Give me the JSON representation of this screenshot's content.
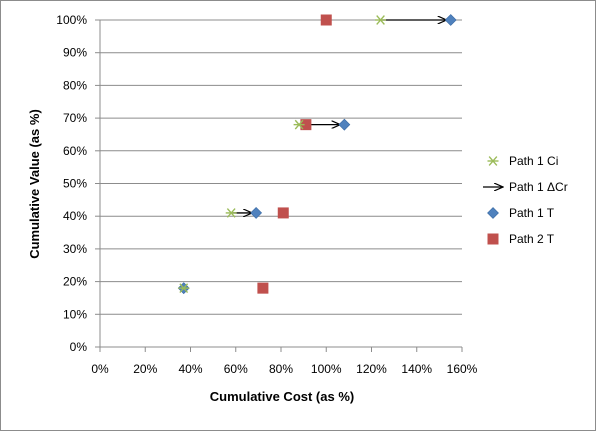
{
  "chart_data": {
    "type": "scatter",
    "xlabel": "Cumulative Cost (as %)",
    "ylabel": "Cumulative Value (as %)",
    "xlim": [
      0,
      160
    ],
    "ylim": [
      0,
      100
    ],
    "x_ticks": [
      "0%",
      "20%",
      "40%",
      "60%",
      "80%",
      "100%",
      "120%",
      "140%",
      "160%"
    ],
    "y_ticks": [
      "0%",
      "10%",
      "20%",
      "30%",
      "40%",
      "50%",
      "60%",
      "70%",
      "80%",
      "90%",
      "100%"
    ],
    "grid": "horizontal",
    "legend_position": "right",
    "series": [
      {
        "name": "Path 1 Ci",
        "marker": "asterisk",
        "color": "#9bbb59",
        "points": [
          [
            37,
            18
          ],
          [
            58,
            41
          ],
          [
            88,
            68
          ],
          [
            124,
            100
          ]
        ]
      },
      {
        "name": "Path 1 ΔCr",
        "marker": "arrow",
        "color": "#000000",
        "segments": [
          {
            "from": [
              37,
              18
            ],
            "to": [
              37,
              18
            ]
          },
          {
            "from": [
              58,
              41
            ],
            "to": [
              69,
              41
            ]
          },
          {
            "from": [
              88,
              68
            ],
            "to": [
              108,
              68
            ]
          },
          {
            "from": [
              124,
              100
            ],
            "to": [
              155,
              100
            ]
          }
        ]
      },
      {
        "name": "Path 1 T",
        "marker": "diamond",
        "color": "#4f81bd",
        "points": [
          [
            37,
            18
          ],
          [
            69,
            41
          ],
          [
            108,
            68
          ],
          [
            155,
            100
          ]
        ]
      },
      {
        "name": "Path 2 T",
        "marker": "square",
        "color": "#c0504d",
        "points": [
          [
            72,
            18
          ],
          [
            81,
            41
          ],
          [
            91,
            68
          ],
          [
            100,
            100
          ]
        ]
      }
    ]
  }
}
